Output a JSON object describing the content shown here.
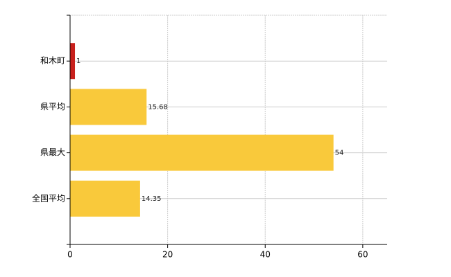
{
  "chart_data": {
    "type": "bar",
    "orientation": "horizontal",
    "categories": [
      "和木町",
      "県平均",
      "県最大",
      "全国平均"
    ],
    "values": [
      1,
      15.68,
      54,
      14.35
    ],
    "colors": [
      "#c8201c",
      "#f9c93b",
      "#f9c93b",
      "#f9c93b"
    ],
    "xlim": [
      0,
      65
    ],
    "xticks": [
      0,
      20,
      40,
      60
    ],
    "grid": true
  }
}
